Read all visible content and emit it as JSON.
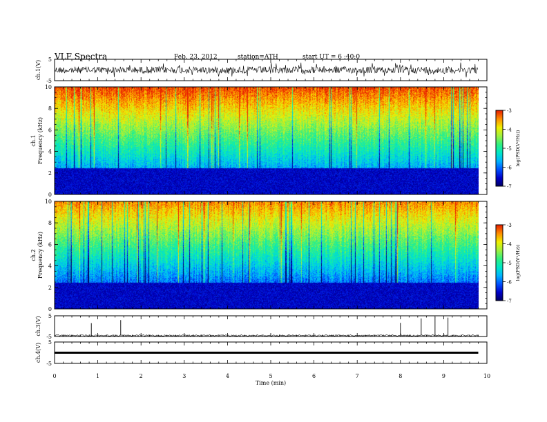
{
  "header": {
    "title": "VLF Spectra",
    "date": "Feb. 23, 2012",
    "station": "station=ATH",
    "start": "start UT =   6 :40:0"
  },
  "colors": {
    "colormap": [
      "#000060",
      "#0000c8",
      "#0050ff",
      "#00b4ff",
      "#00e8c8",
      "#30f080",
      "#a0f040",
      "#f0f000",
      "#ff9000",
      "#e82000"
    ],
    "trace": "#000000"
  },
  "chart_data": [
    {
      "type": "line",
      "name": "ch1-waveform",
      "ylabel": "ch.1(V)",
      "ylim": [
        -5,
        5
      ],
      "yticks": [
        "5",
        "-5"
      ],
      "x_range_min": [
        0,
        9.8
      ],
      "description_level": "noisy trace around 0 V, amplitude about ±1.5 V"
    },
    {
      "type": "heatmap",
      "name": "ch1-spectrogram",
      "ylabel": [
        "ch.1",
        "Frequency  (kHz)"
      ],
      "xlim": [
        0,
        10
      ],
      "ylim": [
        0,
        10
      ],
      "yticks": [
        "0",
        "2",
        "4",
        "6",
        "8",
        "10"
      ],
      "colorbar": {
        "label": "log(PSD(V²/Hz))",
        "ticks": [
          "-3",
          "-4",
          "-5",
          "-6",
          "-7"
        ],
        "range": [
          -7,
          -3
        ]
      }
    },
    {
      "type": "heatmap",
      "name": "ch2-spectrogram",
      "ylabel": [
        "ch.2",
        "Frequency  (kHz)"
      ],
      "xlim": [
        0,
        10
      ],
      "ylim": [
        0,
        10
      ],
      "yticks": [
        "0",
        "2",
        "4",
        "6",
        "8",
        "10"
      ],
      "colorbar": {
        "label": "log(PSD(V²/Hz))",
        "ticks": [
          "-3",
          "-4",
          "-5",
          "-6",
          "-7"
        ],
        "range": [
          -7,
          -3
        ]
      }
    },
    {
      "type": "line",
      "name": "ch3-waveform",
      "ylabel": "ch.3(V)",
      "ylim": [
        -5,
        5
      ],
      "yticks": [
        "5",
        "-5"
      ],
      "spikes_min": [
        0.85,
        1.53,
        8.0,
        8.48,
        8.8,
        9.1
      ]
    },
    {
      "type": "line",
      "name": "ch4-waveform",
      "ylabel": "ch.4(V)",
      "ylim": [
        -5,
        5
      ],
      "yticks": [
        "5",
        "-5"
      ],
      "level_V": 0
    }
  ],
  "xaxis": {
    "label": "Time  (min)",
    "ticks": [
      "0",
      "1",
      "2",
      "3",
      "4",
      "5",
      "6",
      "7",
      "8",
      "9",
      "10"
    ]
  }
}
